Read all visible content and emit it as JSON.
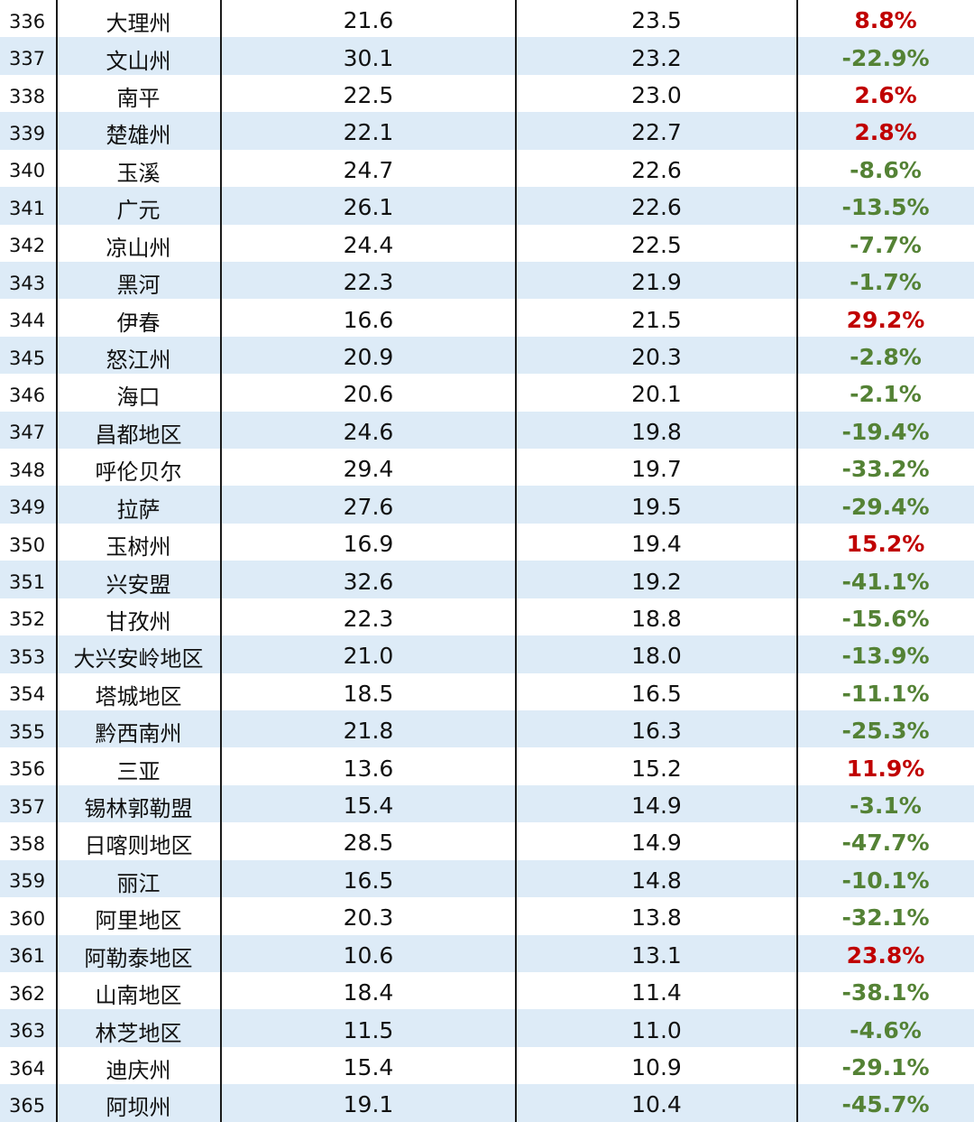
{
  "table": {
    "rows": [
      {
        "rank": "336",
        "city": "大理州",
        "v1": "21.6",
        "v2": "23.5",
        "change": "8.8%",
        "sign": "pos"
      },
      {
        "rank": "337",
        "city": "文山州",
        "v1": "30.1",
        "v2": "23.2",
        "change": "-22.9%",
        "sign": "neg"
      },
      {
        "rank": "338",
        "city": "南平",
        "v1": "22.5",
        "v2": "23.0",
        "change": "2.6%",
        "sign": "pos"
      },
      {
        "rank": "339",
        "city": "楚雄州",
        "v1": "22.1",
        "v2": "22.7",
        "change": "2.8%",
        "sign": "pos"
      },
      {
        "rank": "340",
        "city": "玉溪",
        "v1": "24.7",
        "v2": "22.6",
        "change": "-8.6%",
        "sign": "neg"
      },
      {
        "rank": "341",
        "city": "广元",
        "v1": "26.1",
        "v2": "22.6",
        "change": "-13.5%",
        "sign": "neg"
      },
      {
        "rank": "342",
        "city": "凉山州",
        "v1": "24.4",
        "v2": "22.5",
        "change": "-7.7%",
        "sign": "neg"
      },
      {
        "rank": "343",
        "city": "黑河",
        "v1": "22.3",
        "v2": "21.9",
        "change": "-1.7%",
        "sign": "neg"
      },
      {
        "rank": "344",
        "city": "伊春",
        "v1": "16.6",
        "v2": "21.5",
        "change": "29.2%",
        "sign": "pos"
      },
      {
        "rank": "345",
        "city": "怒江州",
        "v1": "20.9",
        "v2": "20.3",
        "change": "-2.8%",
        "sign": "neg"
      },
      {
        "rank": "346",
        "city": "海口",
        "v1": "20.6",
        "v2": "20.1",
        "change": "-2.1%",
        "sign": "neg"
      },
      {
        "rank": "347",
        "city": "昌都地区",
        "v1": "24.6",
        "v2": "19.8",
        "change": "-19.4%",
        "sign": "neg"
      },
      {
        "rank": "348",
        "city": "呼伦贝尔",
        "v1": "29.4",
        "v2": "19.7",
        "change": "-33.2%",
        "sign": "neg"
      },
      {
        "rank": "349",
        "city": "拉萨",
        "v1": "27.6",
        "v2": "19.5",
        "change": "-29.4%",
        "sign": "neg"
      },
      {
        "rank": "350",
        "city": "玉树州",
        "v1": "16.9",
        "v2": "19.4",
        "change": "15.2%",
        "sign": "pos"
      },
      {
        "rank": "351",
        "city": "兴安盟",
        "v1": "32.6",
        "v2": "19.2",
        "change": "-41.1%",
        "sign": "neg"
      },
      {
        "rank": "352",
        "city": "甘孜州",
        "v1": "22.3",
        "v2": "18.8",
        "change": "-15.6%",
        "sign": "neg"
      },
      {
        "rank": "353",
        "city": "大兴安岭地区",
        "v1": "21.0",
        "v2": "18.0",
        "change": "-13.9%",
        "sign": "neg"
      },
      {
        "rank": "354",
        "city": "塔城地区",
        "v1": "18.5",
        "v2": "16.5",
        "change": "-11.1%",
        "sign": "neg"
      },
      {
        "rank": "355",
        "city": "黔西南州",
        "v1": "21.8",
        "v2": "16.3",
        "change": "-25.3%",
        "sign": "neg"
      },
      {
        "rank": "356",
        "city": "三亚",
        "v1": "13.6",
        "v2": "15.2",
        "change": "11.9%",
        "sign": "pos"
      },
      {
        "rank": "357",
        "city": "锡林郭勒盟",
        "v1": "15.4",
        "v2": "14.9",
        "change": "-3.1%",
        "sign": "neg"
      },
      {
        "rank": "358",
        "city": "日喀则地区",
        "v1": "28.5",
        "v2": "14.9",
        "change": "-47.7%",
        "sign": "neg"
      },
      {
        "rank": "359",
        "city": "丽江",
        "v1": "16.5",
        "v2": "14.8",
        "change": "-10.1%",
        "sign": "neg"
      },
      {
        "rank": "360",
        "city": "阿里地区",
        "v1": "20.3",
        "v2": "13.8",
        "change": "-32.1%",
        "sign": "neg"
      },
      {
        "rank": "361",
        "city": "阿勒泰地区",
        "v1": "10.6",
        "v2": "13.1",
        "change": "23.8%",
        "sign": "pos"
      },
      {
        "rank": "362",
        "city": "山南地区",
        "v1": "18.4",
        "v2": "11.4",
        "change": "-38.1%",
        "sign": "neg"
      },
      {
        "rank": "363",
        "city": "林芝地区",
        "v1": "11.5",
        "v2": "11.0",
        "change": "-4.6%",
        "sign": "neg"
      },
      {
        "rank": "364",
        "city": "迪庆州",
        "v1": "15.4",
        "v2": "10.9",
        "change": "-29.1%",
        "sign": "neg"
      },
      {
        "rank": "365",
        "city": "阿坝州",
        "v1": "19.1",
        "v2": "10.4",
        "change": "-45.7%",
        "sign": "neg"
      }
    ]
  },
  "colors": {
    "row_alt_bg": "#ddebf7",
    "positive_change": "#c00000",
    "negative_change": "#548235",
    "grid_line": "#1a1a1a"
  }
}
